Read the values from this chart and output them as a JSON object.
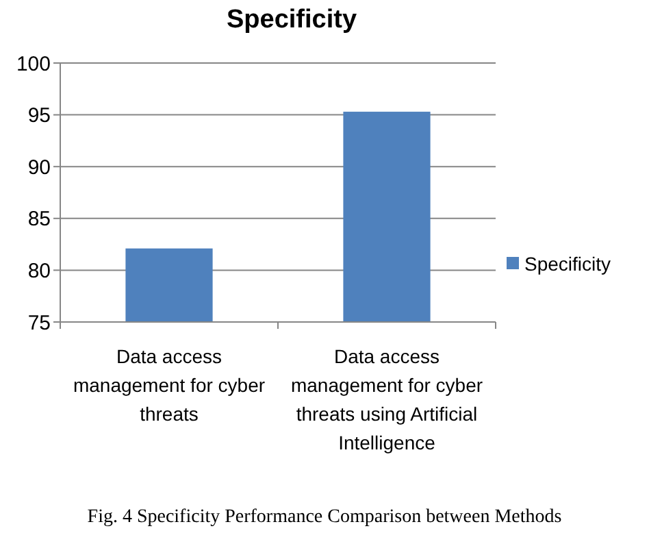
{
  "chart_data": {
    "type": "bar",
    "title": "Specificity",
    "categories": [
      "Data access management for cyber threats",
      "Data access management for cyber threats using Artificial Intelligence"
    ],
    "series": [
      {
        "name": "Specificity",
        "color": "#4f81bd",
        "values": [
          82.1,
          95.3
        ]
      }
    ],
    "ylim": [
      75,
      100
    ],
    "yticks": [
      75,
      80,
      85,
      90,
      95,
      100
    ],
    "grid": "y",
    "legend": "right",
    "annotations": [
      "Fig. 4 Specificity Performance Comparison between Methods"
    ]
  }
}
